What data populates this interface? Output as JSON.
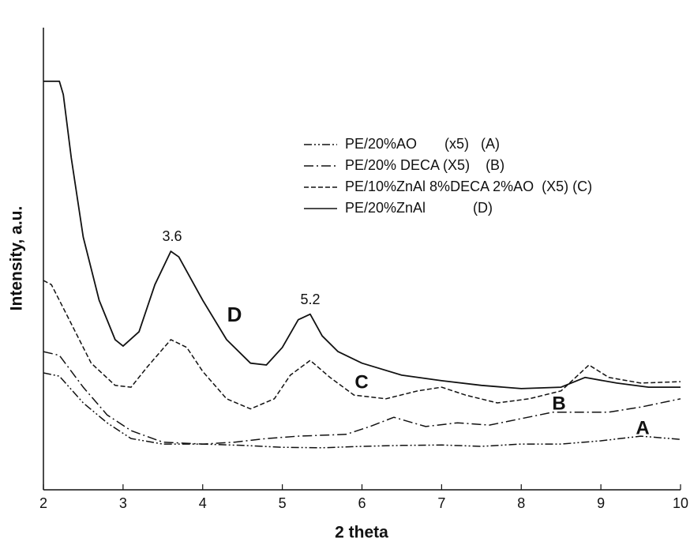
{
  "chart_data": {
    "type": "line",
    "xlabel": "2 theta",
    "ylabel": "Intensity, a.u.",
    "xlim": [
      2,
      10
    ],
    "xticks": [
      2,
      3,
      4,
      5,
      6,
      7,
      8,
      9,
      10
    ],
    "ylim": [
      0,
      100
    ],
    "legend": "upper right",
    "annotations": [
      "3.6",
      "5.2",
      "D",
      "C",
      "B",
      "A"
    ],
    "series": [
      {
        "name": "PE/20%AO       (x5)   (A)",
        "color": "#111111",
        "style": "dashdotdot",
        "x": [
          2,
          2.2,
          2.5,
          2.8,
          3.1,
          3.5,
          4.0,
          4.5,
          5.0,
          5.5,
          6.0,
          6.5,
          7.0,
          7.5,
          8.0,
          8.5,
          9.0,
          9.5,
          10
        ],
        "values": [
          25.3,
          24.6,
          18.8,
          14.5,
          11.1,
          9.9,
          9.9,
          9.6,
          9.2,
          9.1,
          9.4,
          9.6,
          9.7,
          9.4,
          9.9,
          9.9,
          10.6,
          11.6,
          10.9
        ]
      },
      {
        "name": "PE/20% DECA (X5)    (B)",
        "color": "#111111",
        "style": "dashdot",
        "x": [
          2,
          2.2,
          2.5,
          2.8,
          3.1,
          3.5,
          4.0,
          4.4,
          4.8,
          5.2,
          5.8,
          6.1,
          6.4,
          6.8,
          7.2,
          7.6,
          8.0,
          8.4,
          8.8,
          9.1,
          9.5,
          10
        ],
        "values": [
          29.9,
          29.1,
          22.2,
          16.2,
          12.8,
          10.3,
          9.9,
          10.3,
          11.1,
          11.6,
          12,
          13.7,
          15.7,
          13.7,
          14.5,
          14,
          15.4,
          16.8,
          16.8,
          16.8,
          17.9,
          19.7
        ]
      },
      {
        "name": "PE/10%ZnAl 8%DECA 2%AO  (X5) (C)",
        "color": "#111111",
        "style": "dashed",
        "x": [
          2,
          2.1,
          2.3,
          2.6,
          2.9,
          3.1,
          3.3,
          3.6,
          3.8,
          4.0,
          4.3,
          4.6,
          4.9,
          5.1,
          5.35,
          5.6,
          5.9,
          6.3,
          6.7,
          7.0,
          7.3,
          7.7,
          8.1,
          8.5,
          8.85,
          9.1,
          9.5,
          10
        ],
        "values": [
          45.3,
          44.4,
          37.6,
          27.4,
          22.6,
          22.2,
          26.5,
          32.5,
          30.8,
          25.6,
          19.7,
          17.5,
          19.7,
          24.8,
          28,
          24.3,
          20.5,
          19.7,
          21.4,
          22.2,
          20.5,
          18.8,
          19.7,
          21.4,
          27,
          24.3,
          23.1,
          23.4
        ]
      },
      {
        "name": "PE/20%ZnAl            (D)",
        "color": "#111111",
        "style": "solid",
        "x": [
          2,
          2.2,
          2.25,
          2.35,
          2.5,
          2.7,
          2.9,
          3.0,
          3.2,
          3.4,
          3.6,
          3.7,
          4.0,
          4.3,
          4.6,
          4.8,
          5.0,
          5.2,
          5.35,
          5.5,
          5.7,
          6.0,
          6.5,
          7.0,
          7.5,
          8.0,
          8.5,
          8.8,
          9.2,
          9.6,
          10
        ],
        "values": [
          88.4,
          88.4,
          85.5,
          71.8,
          54.7,
          41,
          32.5,
          31.1,
          34.2,
          44.4,
          51.6,
          50.4,
          41,
          32.5,
          27.4,
          27,
          30.8,
          36.8,
          38,
          33.3,
          29.9,
          27.4,
          24.8,
          23.6,
          22.6,
          21.9,
          22.2,
          24.3,
          23.1,
          22.2,
          22.2
        ]
      }
    ]
  }
}
